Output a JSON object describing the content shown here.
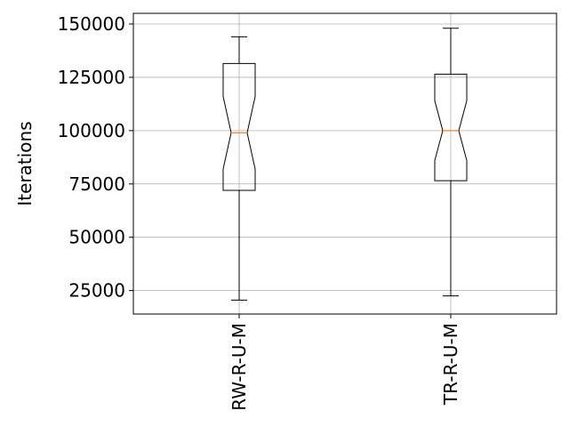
{
  "chart_data": {
    "type": "boxplot",
    "notched": true,
    "title": "",
    "xlabel": "",
    "ylabel": "Iterations",
    "ylim": [
      14000,
      155000
    ],
    "yticks": [
      25000,
      50000,
      75000,
      100000,
      125000,
      150000
    ],
    "ytick_labels": [
      "25000",
      "50000",
      "75000",
      "100000",
      "125000",
      "150000"
    ],
    "grid": true,
    "categories": [
      "RW-R-U-M",
      "TR-R-U-M"
    ],
    "boxes": [
      {
        "whisker_low": 20500,
        "q1": 72000,
        "notch_low": 82000,
        "median": 99000,
        "notch_high": 116000,
        "q3": 131500,
        "whisker_high": 144000
      },
      {
        "whisker_low": 22500,
        "q1": 76500,
        "notch_low": 86000,
        "median": 100000,
        "notch_high": 114000,
        "q3": 126500,
        "whisker_high": 148000
      }
    ],
    "colors": {
      "box": "#000000",
      "median": "#ff7f0e",
      "grid": "#b0b0b0"
    }
  }
}
